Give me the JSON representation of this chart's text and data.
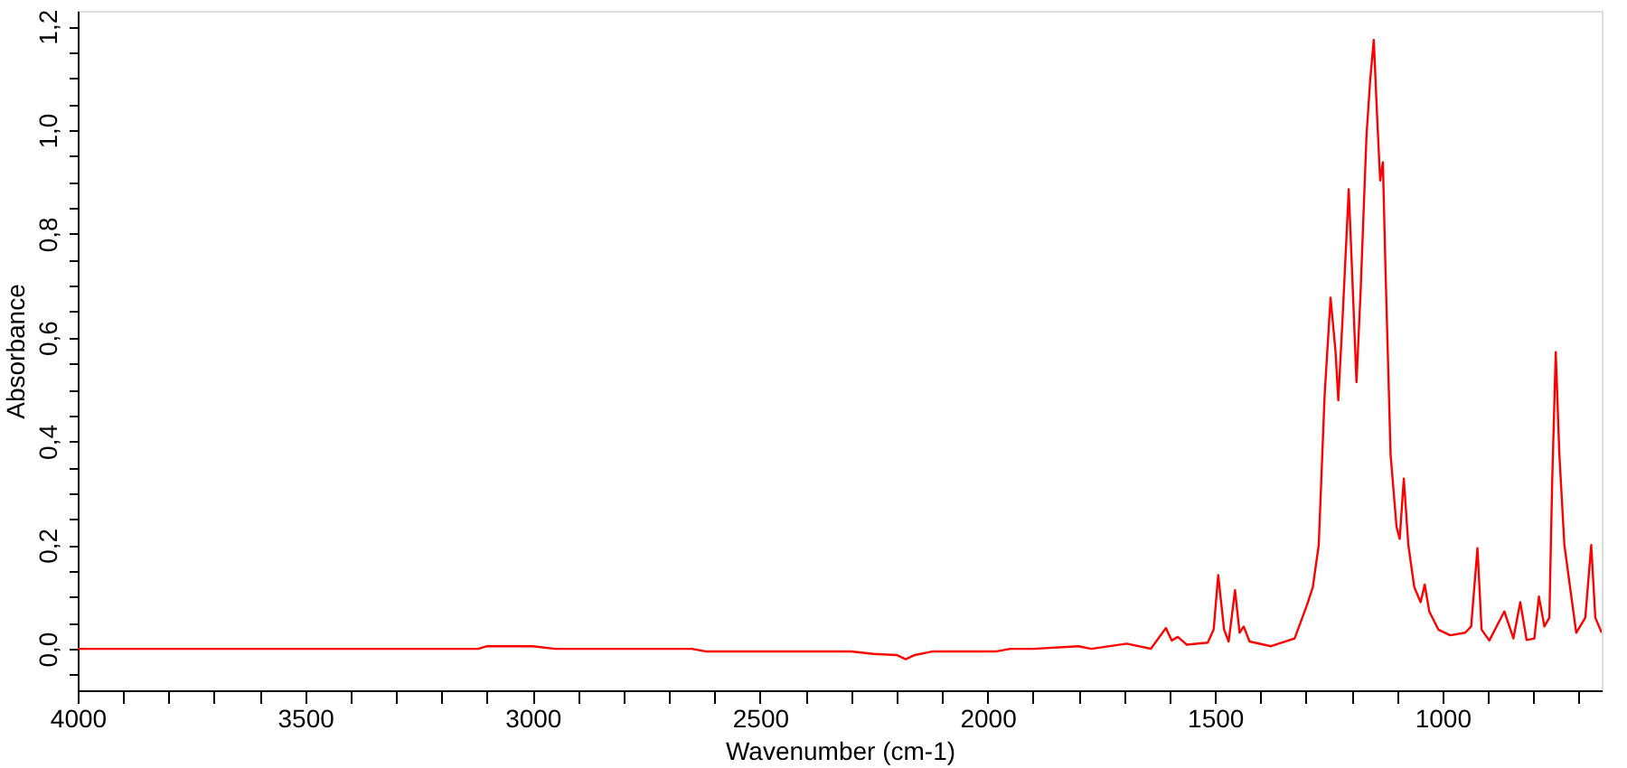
{
  "chart_data": {
    "type": "line",
    "xlabel": "Wavenumber (cm-1)",
    "ylabel": "Absorbance",
    "grid": false,
    "marker": "none",
    "line_style": "solid",
    "xlim": [
      4000,
      650
    ],
    "ylim": [
      -0.08,
      1.23
    ],
    "xticks": [
      4000,
      {
        "value": 3900,
        "label": null
      },
      {
        "value": 3800,
        "label": null
      },
      {
        "value": 3700,
        "label": null
      },
      {
        "value": 3600,
        "label": null
      },
      3500,
      {
        "value": 3400,
        "label": null
      },
      {
        "value": 3300,
        "label": null
      },
      {
        "value": 3200,
        "label": null
      },
      {
        "value": 3100,
        "label": null
      },
      3000,
      {
        "value": 2900,
        "label": null
      },
      {
        "value": 2800,
        "label": null
      },
      {
        "value": 2700,
        "label": null
      },
      {
        "value": 2600,
        "label": null
      },
      2500,
      {
        "value": 2400,
        "label": null
      },
      {
        "value": 2300,
        "label": null
      },
      {
        "value": 2200,
        "label": null
      },
      {
        "value": 2100,
        "label": null
      },
      2000,
      {
        "value": 1900,
        "label": null
      },
      {
        "value": 1800,
        "label": null
      },
      {
        "value": 1700,
        "label": null
      },
      {
        "value": 1600,
        "label": null
      },
      1500,
      {
        "value": 1400,
        "label": null
      },
      {
        "value": 1300,
        "label": null
      },
      {
        "value": 1200,
        "label": null
      },
      {
        "value": 1100,
        "label": null
      },
      1000,
      {
        "value": 900,
        "label": null
      },
      {
        "value": 800,
        "label": null
      },
      {
        "value": 700,
        "label": null
      }
    ],
    "yticks": [
      {
        "value": -0.05,
        "label": null
      },
      {
        "value": 0,
        "label": "0,0"
      },
      {
        "value": 0.05,
        "label": null
      },
      {
        "value": 0.1,
        "label": null
      },
      {
        "value": 0.15,
        "label": null
      },
      {
        "value": 0.2,
        "label": "0,2"
      },
      {
        "value": 0.25,
        "label": null
      },
      {
        "value": 0.3,
        "label": null
      },
      {
        "value": 0.35,
        "label": null
      },
      {
        "value": 0.4,
        "label": "0,4"
      },
      {
        "value": 0.45,
        "label": null
      },
      {
        "value": 0.5,
        "label": null
      },
      {
        "value": 0.55,
        "label": null
      },
      {
        "value": 0.6,
        "label": "0,6"
      },
      {
        "value": 0.65,
        "label": null
      },
      {
        "value": 0.7,
        "label": null
      },
      {
        "value": 0.75,
        "label": null
      },
      {
        "value": 0.8,
        "label": "0,8"
      },
      {
        "value": 0.85,
        "label": null
      },
      {
        "value": 0.9,
        "label": null
      },
      {
        "value": 0.95,
        "label": null
      },
      {
        "value": 1.0,
        "label": "1,0"
      },
      {
        "value": 1.05,
        "label": null
      },
      {
        "value": 1.1,
        "label": null
      },
      {
        "value": 1.15,
        "label": null
      },
      {
        "value": 1.2,
        "label": "1,2"
      }
    ],
    "series": [
      {
        "color": "#ff0000",
        "x": [
          4000,
          3600,
          3300,
          3120,
          3100,
          3000,
          2950,
          2650,
          2620,
          2400,
          2300,
          2250,
          2200,
          2180,
          2160,
          2120,
          2050,
          1980,
          1950,
          1900,
          1800,
          1772,
          1694,
          1641,
          1608,
          1595,
          1582,
          1562,
          1516,
          1503,
          1493,
          1480,
          1470,
          1456,
          1446,
          1437,
          1424,
          1377,
          1325,
          1298,
          1285,
          1272,
          1259,
          1246,
          1235,
          1229,
          1220,
          1206,
          1198,
          1189,
          1180,
          1167,
          1159,
          1151,
          1143,
          1137,
          1131,
          1125,
          1114,
          1101,
          1094,
          1085,
          1075,
          1062,
          1048,
          1039,
          1029,
          1009,
          983,
          950,
          937,
          923,
          914,
          897,
          864,
          844,
          829,
          815,
          798,
          788,
          776,
          765,
          759,
          751,
          743,
          732,
          706,
          686,
          673,
          664,
          650
        ],
        "values": [
          0.0,
          0.0,
          0.0,
          0.0,
          0.005,
          0.005,
          0.0,
          0.0,
          -0.005,
          -0.005,
          -0.005,
          -0.01,
          -0.012,
          -0.02,
          -0.012,
          -0.005,
          -0.005,
          -0.005,
          0.0,
          0.0,
          0.005,
          0.0,
          0.01,
          0.0,
          0.04,
          0.016,
          0.023,
          0.008,
          0.012,
          0.037,
          0.142,
          0.037,
          0.014,
          0.113,
          0.031,
          0.043,
          0.014,
          0.005,
          0.02,
          0.084,
          0.119,
          0.2,
          0.49,
          0.677,
          0.572,
          0.479,
          0.63,
          0.886,
          0.712,
          0.514,
          0.688,
          0.99,
          1.095,
          1.174,
          1.014,
          0.903,
          0.938,
          0.723,
          0.374,
          0.235,
          0.212,
          0.328,
          0.2,
          0.119,
          0.09,
          0.124,
          0.072,
          0.037,
          0.026,
          0.031,
          0.043,
          0.194,
          0.037,
          0.016,
          0.072,
          0.02,
          0.09,
          0.017,
          0.02,
          0.101,
          0.043,
          0.06,
          0.316,
          0.572,
          0.374,
          0.2,
          0.031,
          0.06,
          0.2,
          0.06,
          0.031
        ]
      }
    ]
  }
}
